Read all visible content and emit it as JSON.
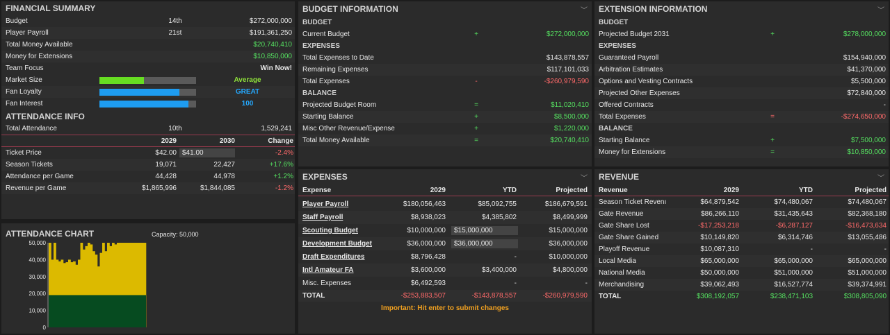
{
  "financial": {
    "title": "FINANCIAL SUMMARY",
    "rows": [
      {
        "label": "Budget",
        "rank": "14th",
        "value": "$272,000,000"
      },
      {
        "label": "Player Payroll",
        "rank": "21st",
        "value": "$191,361,250"
      },
      {
        "label": "Total Money Available",
        "rank": "",
        "value": "$20,740,410"
      },
      {
        "label": "Money for Extensions",
        "rank": "",
        "value": "$10,850,000"
      },
      {
        "label": "Team Focus",
        "rank": "",
        "value": "Win Now!"
      }
    ],
    "bars": [
      {
        "label": "Market Size",
        "text": "Average",
        "fill": 0.46,
        "color": "#66dd22"
      },
      {
        "label": "Fan Loyalty",
        "text": "GREAT",
        "fill": 0.83,
        "color": "#1e9cf0"
      },
      {
        "label": "Fan Interest",
        "text": "100",
        "fill": 0.92,
        "color": "#1e9cf0"
      }
    ]
  },
  "attendance": {
    "title": "ATTENDANCE INFO",
    "total_label": "Total Attendance",
    "total_rank": "10th",
    "total_value": "1,529,241",
    "headers": [
      "2029",
      "2030",
      "Change"
    ],
    "rows": [
      {
        "label": "Ticket Price",
        "y1": "$42.00",
        "y2": "$41.00",
        "change": "-2.4%",
        "dir": "red"
      },
      {
        "label": "Season Tickets",
        "y1": "19,071",
        "y2": "22,427",
        "change": "+17.6%",
        "dir": "green"
      },
      {
        "label": "Attendance per Game",
        "y1": "44,428",
        "y2": "44,978",
        "change": "+1.2%",
        "dir": "green"
      },
      {
        "label": "Revenue per Game",
        "y1": "$1,865,996",
        "y2": "$1,844,085",
        "change": "-1.2%",
        "dir": "red"
      }
    ]
  },
  "attendance_chart": {
    "title": "ATTENDANCE CHART",
    "capacity_label": "Capacity: 50,000"
  },
  "chart_data": {
    "type": "area",
    "title": "ATTENDANCE CHART",
    "annotation": "Capacity: 50,000",
    "ylim": [
      0,
      50000
    ],
    "yticks": [
      "50,000",
      "40,000",
      "30,000",
      "20,000",
      "10,000",
      "0"
    ],
    "season_tickets": 19071,
    "capacity": 50000,
    "values": [
      50000,
      40000,
      50000,
      40000,
      39000,
      40000,
      38000,
      38500,
      40000,
      38500,
      39000,
      37000,
      40000,
      50000,
      46000,
      48000,
      50000,
      49000,
      45000,
      43000,
      36000,
      44000,
      50000,
      45000,
      50000,
      48000,
      50000,
      49000,
      50000,
      50000,
      50000,
      50000,
      50000,
      50000,
      50000,
      50000,
      50000,
      50000,
      50000,
      50000
    ],
    "colors": {
      "attendance": "#dcba00",
      "season": "#064b20"
    }
  },
  "budget_info": {
    "title": "BUDGET INFORMATION",
    "sections": [
      {
        "title": "BUDGET",
        "rows": [
          {
            "label": "Current Budget",
            "op": "+",
            "value": "$272,000,000",
            "color": "green"
          }
        ]
      },
      {
        "title": "EXPENSES",
        "rows": [
          {
            "label": "Total Expenses to Date",
            "op": "",
            "value": "$143,878,557",
            "color": ""
          },
          {
            "label": "Remaining Expenses",
            "op": "",
            "value": "$117,101,033",
            "color": ""
          },
          {
            "label": "Total Expenses",
            "op": "-",
            "value": "-$260,979,590",
            "color": "red"
          }
        ]
      },
      {
        "title": "BALANCE",
        "rows": [
          {
            "label": "Projected Budget Room",
            "op": "=",
            "value": "$11,020,410",
            "color": "green"
          },
          {
            "label": "Starting Balance",
            "op": "+",
            "value": "$8,500,000",
            "color": "green"
          },
          {
            "label": "Misc Other Revenue/Expense",
            "op": "+",
            "value": "$1,220,000",
            "color": "green"
          },
          {
            "label": "Total Money Available",
            "op": "=",
            "value": "$20,740,410",
            "color": "green"
          }
        ]
      }
    ]
  },
  "extension_info": {
    "title": "EXTENSION INFORMATION",
    "sections": [
      {
        "title": "BUDGET",
        "rows": [
          {
            "label": "Projected Budget 2031",
            "op": "+",
            "value": "$278,000,000",
            "color": "green"
          }
        ]
      },
      {
        "title": "EXPENSES",
        "rows": [
          {
            "label": "Guaranteed Payroll",
            "op": "",
            "value": "$154,940,000",
            "color": ""
          },
          {
            "label": "Arbitration Estimates",
            "op": "",
            "value": "$41,370,000",
            "color": ""
          },
          {
            "label": "Options and Vesting Contracts",
            "op": "",
            "value": "$5,500,000",
            "color": ""
          },
          {
            "label": "Projected Other Expenses",
            "op": "",
            "value": "$72,840,000",
            "color": ""
          },
          {
            "label": "Offered Contracts",
            "op": "",
            "value": "-",
            "color": ""
          },
          {
            "label": "Total Expenses",
            "op": "=",
            "value": "-$274,650,000",
            "color": "red"
          }
        ]
      },
      {
        "title": "BALANCE",
        "rows": [
          {
            "label": "Starting Balance",
            "op": "+",
            "value": "$7,500,000",
            "color": "green"
          },
          {
            "label": "Money for Extensions",
            "op": "=",
            "value": "$10,850,000",
            "color": "green"
          }
        ]
      }
    ]
  },
  "expenses": {
    "title": "EXPENSES",
    "headers": [
      "Expense",
      "2029",
      "YTD",
      "Projected"
    ],
    "rows": [
      {
        "label": "Player Payroll",
        "link": true,
        "v2029": "$180,056,463",
        "ytd": "$85,092,755",
        "ytd_input": false,
        "proj": "$186,679,591"
      },
      {
        "label": "Staff Payroll",
        "link": true,
        "v2029": "$8,938,023",
        "ytd": "$4,385,802",
        "ytd_input": false,
        "proj": "$8,499,999"
      },
      {
        "label": "Scouting Budget",
        "link": true,
        "v2029": "$10,000,000",
        "ytd": "$15,000,000",
        "ytd_input": true,
        "proj": "$15,000,000"
      },
      {
        "label": "Development Budget",
        "link": true,
        "v2029": "$36,000,000",
        "ytd": "$36,000,000",
        "ytd_input": true,
        "proj": "$36,000,000"
      },
      {
        "label": "Draft Expenditures",
        "link": true,
        "v2029": "$8,796,428",
        "ytd": "-",
        "ytd_input": false,
        "proj": "$10,000,000"
      },
      {
        "label": "Intl Amateur FA",
        "link": true,
        "v2029": "$3,600,000",
        "ytd": "$3,400,000",
        "ytd_input": false,
        "proj": "$4,800,000"
      },
      {
        "label": "Misc. Expenses",
        "link": false,
        "v2029": "$6,492,593",
        "ytd": "-",
        "ytd_input": false,
        "proj": "-"
      }
    ],
    "total": {
      "label": "TOTAL",
      "v2029": "-$253,883,507",
      "ytd": "-$143,878,557",
      "proj": "-$260,979,590"
    },
    "notice": "Important: Hit enter to submit changes"
  },
  "revenue": {
    "title": "REVENUE",
    "headers": [
      "Revenue",
      "2029",
      "YTD",
      "Projected"
    ],
    "rows": [
      {
        "label": "Season Ticket Revenı",
        "v2029": "$64,879,542",
        "ytd": "$74,480,067",
        "proj": "$74,480,067",
        "neg": false
      },
      {
        "label": "Gate Revenue",
        "v2029": "$86,266,110",
        "ytd": "$31,435,643",
        "proj": "$82,368,180",
        "neg": false
      },
      {
        "label": "Gate Share Lost",
        "v2029": "-$17,253,218",
        "ytd": "-$6,287,127",
        "proj": "-$16,473,634",
        "neg": true
      },
      {
        "label": "Gate Share Gained",
        "v2029": "$10,149,820",
        "ytd": "$6,314,746",
        "proj": "$13,055,486",
        "neg": false
      },
      {
        "label": "Playoff Revenue",
        "v2029": "$10,087,310",
        "ytd": "-",
        "proj": "-",
        "neg": false
      },
      {
        "label": "Local Media",
        "v2029": "$65,000,000",
        "ytd": "$65,000,000",
        "proj": "$65,000,000",
        "neg": false
      },
      {
        "label": "National Media",
        "v2029": "$50,000,000",
        "ytd": "$51,000,000",
        "proj": "$51,000,000",
        "neg": false
      },
      {
        "label": "Merchandising",
        "v2029": "$39,062,493",
        "ytd": "$16,527,774",
        "proj": "$39,374,991",
        "neg": false
      }
    ],
    "total": {
      "label": "TOTAL",
      "v2029": "$308,192,057",
      "ytd": "$238,471,103",
      "proj": "$308,805,090"
    }
  }
}
